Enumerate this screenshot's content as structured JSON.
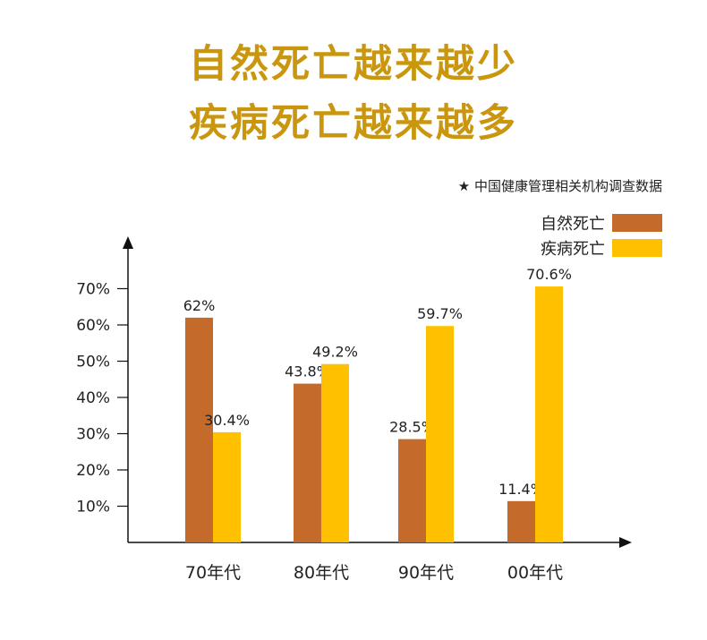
{
  "title": {
    "line1": "自然死亡越来越少",
    "line2": "疾病死亡越来越多",
    "color": "#C9960E"
  },
  "source_note": "★ 中国健康管理相关机构调查数据",
  "chart_data": {
    "type": "bar",
    "categories": [
      "70年代",
      "80年代",
      "90年代",
      "00年代"
    ],
    "series": [
      {
        "name": "自然死亡",
        "values": [
          62,
          43.8,
          28.5,
          11.4
        ],
        "labels": [
          "62%",
          "43.8%",
          "28.5%",
          "11.4%"
        ],
        "color": "#C46A2B"
      },
      {
        "name": "疾病死亡",
        "values": [
          30.4,
          49.2,
          59.7,
          70.6
        ],
        "labels": [
          "30.4%",
          "49.2%",
          "59.7%",
          "70.6%"
        ],
        "color": "#FFC000"
      }
    ],
    "yticks": [
      10,
      20,
      30,
      40,
      50,
      60,
      70
    ],
    "ytick_labels": [
      "10%",
      "20%",
      "30%",
      "40%",
      "50%",
      "60%",
      "70%"
    ],
    "ylim": [
      0,
      75
    ],
    "legend": "top-right",
    "grid": false
  }
}
